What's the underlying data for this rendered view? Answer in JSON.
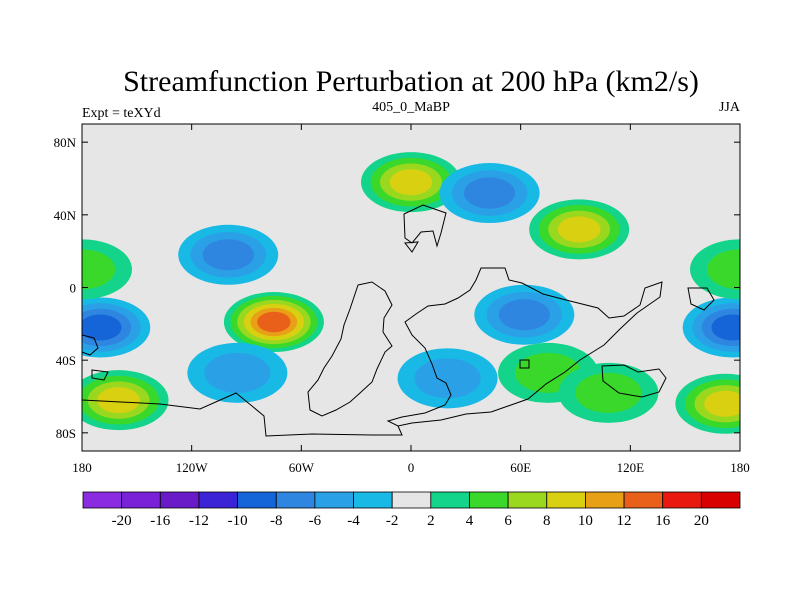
{
  "chart_data": {
    "type": "heatmap",
    "title": "Streamfunction Perturbation at 200 hPa (km2/s)",
    "left_label": "Expt = teXYd",
    "center_label": "405_0_MaBP",
    "right_label": "JJA",
    "x_ticks": [
      {
        "value": -180,
        "label": "180"
      },
      {
        "value": -120,
        "label": "120W"
      },
      {
        "value": -60,
        "label": "60W"
      },
      {
        "value": 0,
        "label": "0"
      },
      {
        "value": 60,
        "label": "60E"
      },
      {
        "value": 120,
        "label": "120E"
      },
      {
        "value": 180,
        "label": "180"
      }
    ],
    "y_ticks": [
      {
        "value": 80,
        "label": "80N"
      },
      {
        "value": 40,
        "label": "40N"
      },
      {
        "value": 0,
        "label": "0"
      },
      {
        "value": -40,
        "label": "40S"
      },
      {
        "value": -80,
        "label": "80S"
      }
    ],
    "xlim": [
      -180,
      180
    ],
    "ylim": [
      -90,
      90
    ],
    "colorbar": {
      "boundaries": [
        -20,
        -16,
        -12,
        -10,
        -8,
        -6,
        -4,
        -2,
        2,
        4,
        6,
        8,
        10,
        12,
        16,
        20
      ],
      "labels": [
        "-20",
        "-16",
        "-12",
        "-10",
        "-8",
        "-6",
        "-4",
        "-2",
        "2",
        "4",
        "6",
        "8",
        "10",
        "12",
        "16",
        "20"
      ],
      "colors": [
        "#8a2be2",
        "#7a22d8",
        "#6a1bc8",
        "#3b23d6",
        "#1565d8",
        "#2f86e0",
        "#2aa1e6",
        "#19b9e6",
        "#e6e6e6",
        "#13d48a",
        "#3ad82a",
        "#9ad820",
        "#d8d010",
        "#e8a016",
        "#e8601a",
        "#e81a10",
        "#d80000"
      ]
    },
    "features": [
      {
        "lon": 0,
        "lat": 58,
        "value": 9
      },
      {
        "lon": 92,
        "lat": 32,
        "value": 9
      },
      {
        "lon": 43,
        "lat": 52,
        "value": -8
      },
      {
        "lon": -100,
        "lat": 18,
        "value": -8
      },
      {
        "lon": -75,
        "lat": -19,
        "value": 13
      },
      {
        "lon": -170,
        "lat": -22,
        "value": -10
      },
      {
        "lon": 176,
        "lat": -22,
        "value": -10
      },
      {
        "lon": -160,
        "lat": -62,
        "value": 8
      },
      {
        "lon": 172,
        "lat": -64,
        "value": 8
      },
      {
        "lon": 62,
        "lat": -15,
        "value": -7
      },
      {
        "lon": 20,
        "lat": -50,
        "value": -6
      },
      {
        "lon": -95,
        "lat": -47,
        "value": -6
      },
      {
        "lon": 75,
        "lat": -47,
        "value": 5
      },
      {
        "lon": 108,
        "lat": -58,
        "value": 5
      },
      {
        "lon": 180,
        "lat": 10,
        "value": 4
      },
      {
        "lon": -180,
        "lat": 10,
        "value": 4
      }
    ]
  }
}
